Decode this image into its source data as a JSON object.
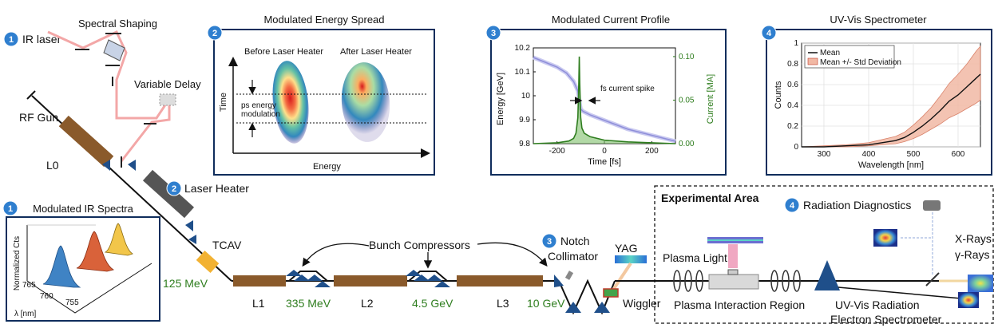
{
  "colors": {
    "accent_blue": "#2f7fcf",
    "panel_border": "#0f2d5c",
    "linac_brown": "#8a5a2b",
    "laser_heater_gray": "#555555",
    "tcav_orange": "#f2b233",
    "magnet_blue": "#1f4f8a",
    "laser_pink": "#f3a7a7",
    "current_green": "#2e7d1e",
    "energy_lavender": "#8f8fd9",
    "band_peach": "#f1b8a4"
  },
  "labels": {
    "ir_laser": "IR laser",
    "spectral_shaping": "Spectral Shaping",
    "variable_delay": "Variable Delay",
    "rf_gun": "RF Gun",
    "l0": "L0",
    "laser_heater": "Laser Heater",
    "tcav": "TCAV",
    "energy_125": "125 MeV",
    "l1": "L1",
    "energy_335": "335 MeV",
    "l2": "L2",
    "energy_45": "4.5 GeV",
    "l3": "L3",
    "energy_10": "10 GeV",
    "bunch_compressors": "Bunch Compressors",
    "notch": "Notch",
    "collimator": "Collimator",
    "yag": "YAG",
    "wiggler": "Wiggler",
    "experimental_area": "Experimental Area",
    "radiation_diagnostics": "Radiation Diagnostics",
    "plasma_light": "Plasma Light",
    "uv_vis_radiation": "UV-Vis Radiation",
    "xrays": "X-Rays",
    "gamma_rays": "γ-Rays",
    "plasma_interaction_region": "Plasma Interaction Region",
    "electron_spectrometer": "Electron Spectrometer"
  },
  "badges": {
    "ir_laser": "1",
    "energy_spread": "2",
    "laser_heater": "2",
    "current_profile": "3",
    "notch": "3",
    "uvvis": "4",
    "ir_spectra": "1",
    "radiation_diagnostics": "4"
  },
  "panels": {
    "energy_spread": {
      "title": "Modulated Energy Spread",
      "before": "Before Laser Heater",
      "after": "After Laser Heater",
      "ylabel": "Time",
      "xlabel": "Energy",
      "annotation_line1": "ps energy",
      "annotation_line2": "modulation"
    },
    "ir_spectra": {
      "title": "Modulated IR Spectra",
      "ylabel": "Normalized Cts",
      "xlabel": "λ [nm]",
      "ticks": [
        "765",
        "760",
        "755"
      ]
    }
  },
  "chart_data": [
    {
      "type": "line",
      "title": "Modulated Current Profile",
      "xlabel": "Time [fs]",
      "ylabel": "Energy [GeV]",
      "y2label": "Current [MA]",
      "xlim": [
        -300,
        300
      ],
      "ylim": [
        9.8,
        10.2
      ],
      "y2lim": [
        0,
        0.11
      ],
      "xticks": [
        "-200",
        "0",
        "200"
      ],
      "yticks": [
        "9.8",
        "9.9",
        "10",
        "10.1",
        "10.2"
      ],
      "y2ticks": [
        "0.00",
        "0.05",
        "0.10"
      ],
      "annotation": "fs current spike",
      "series": [
        {
          "name": "Energy",
          "axis": "left",
          "color": "#8f8fd9",
          "x": [
            -300,
            -250,
            -200,
            -160,
            -130,
            -112,
            -106,
            -100,
            -90,
            -60,
            -20,
            20,
            60,
            100,
            140,
            180,
            220,
            260,
            300
          ],
          "y": [
            10.16,
            10.14,
            10.12,
            10.095,
            10.06,
            10.02,
            9.98,
            9.945,
            9.935,
            9.92,
            9.905,
            9.89,
            9.875,
            9.86,
            9.85,
            9.84,
            9.83,
            9.82,
            9.81
          ]
        },
        {
          "name": "Current",
          "axis": "right",
          "color": "#2e7d1e",
          "x": [
            -300,
            -200,
            -150,
            -130,
            -120,
            -112,
            -108,
            -106,
            -104,
            -100,
            -95,
            -85,
            -60,
            0,
            100,
            200,
            300
          ],
          "y": [
            0.0,
            0.001,
            0.003,
            0.006,
            0.012,
            0.03,
            0.07,
            0.1,
            0.07,
            0.03,
            0.018,
            0.012,
            0.008,
            0.004,
            0.002,
            0.001,
            0.0
          ]
        }
      ]
    },
    {
      "type": "line",
      "title": "UV-Vis Spectrometer",
      "xlabel": "Wavelength [nm]",
      "ylabel": "Counts",
      "xlim": [
        250,
        650
      ],
      "ylim": [
        0,
        1
      ],
      "xticks": [
        "300",
        "400",
        "500",
        "600"
      ],
      "yticks": [
        "0",
        "0.2",
        "0.4",
        "0.6",
        "0.8",
        "1"
      ],
      "legend": [
        "Mean",
        "Mean +/- Std Deviation"
      ],
      "series": [
        {
          "name": "Mean",
          "x": [
            250,
            300,
            350,
            400,
            430,
            460,
            480,
            500,
            520,
            540,
            560,
            580,
            600,
            620,
            640,
            650
          ],
          "y": [
            0.0,
            0.0,
            0.01,
            0.02,
            0.04,
            0.06,
            0.09,
            0.14,
            0.2,
            0.27,
            0.35,
            0.44,
            0.5,
            0.58,
            0.66,
            0.7
          ]
        },
        {
          "name": "Mean +/- Std Deviation",
          "x": [
            250,
            300,
            350,
            400,
            430,
            460,
            480,
            500,
            520,
            540,
            560,
            580,
            600,
            620,
            640,
            650
          ],
          "y_low": [
            0.0,
            0.0,
            0.0,
            0.01,
            0.02,
            0.03,
            0.05,
            0.08,
            0.12,
            0.17,
            0.22,
            0.28,
            0.32,
            0.37,
            0.42,
            0.45
          ],
          "y_high": [
            0.0,
            0.01,
            0.02,
            0.04,
            0.07,
            0.1,
            0.14,
            0.21,
            0.29,
            0.38,
            0.49,
            0.61,
            0.7,
            0.8,
            0.92,
            0.97
          ]
        }
      ]
    }
  ]
}
